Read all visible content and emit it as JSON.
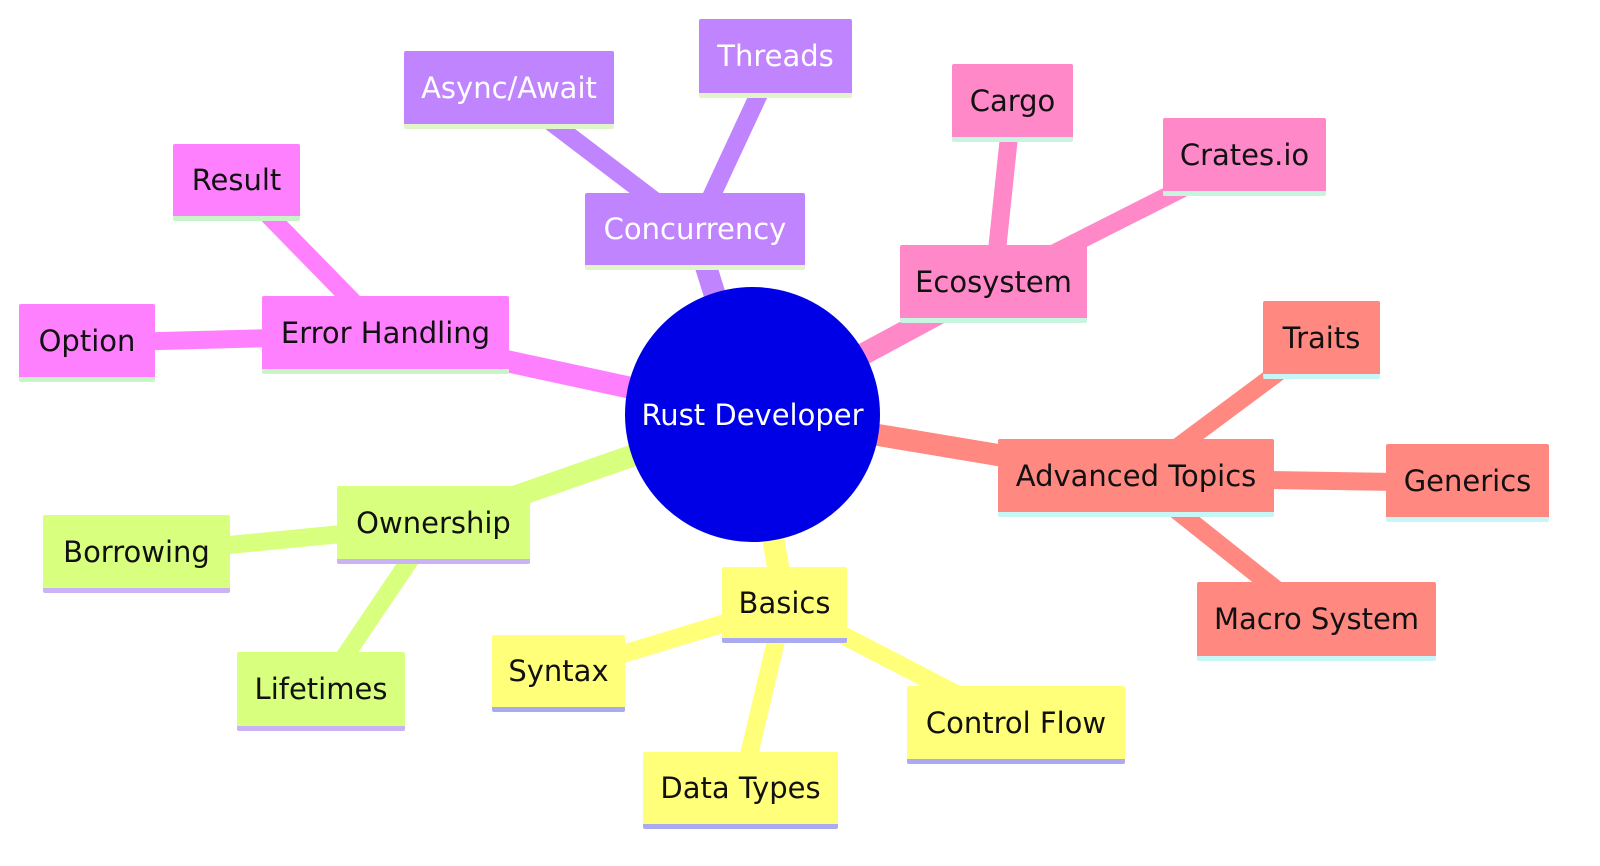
{
  "root": {
    "label": "Rust Developer",
    "color": "#0000e6",
    "text_color": "#ffffff"
  },
  "branches": [
    {
      "key": "basics",
      "label": "Basics",
      "color": "#ffff7a",
      "edge_color": "#ffff7a",
      "underline": "#aaaaf0",
      "text_color": "#111111",
      "children": [
        {
          "key": "syntax",
          "label": "Syntax"
        },
        {
          "key": "data-types",
          "label": "Data Types"
        },
        {
          "key": "control-flow",
          "label": "Control Flow"
        }
      ]
    },
    {
      "key": "ownership",
      "label": "Ownership",
      "color": "#d9ff7f",
      "edge_color": "#d9ff7f",
      "underline": "#c9b3f5",
      "text_color": "#111111",
      "children": [
        {
          "key": "borrowing",
          "label": "Borrowing"
        },
        {
          "key": "lifetimes",
          "label": "Lifetimes"
        }
      ]
    },
    {
      "key": "error-handling",
      "label": "Error Handling",
      "color": "#ff80ff",
      "edge_color": "#ff80ff",
      "underline": "#c8f5c8",
      "text_color": "#111111",
      "children": [
        {
          "key": "result",
          "label": "Result"
        },
        {
          "key": "option",
          "label": "Option"
        }
      ]
    },
    {
      "key": "concurrency",
      "label": "Concurrency",
      "color": "#c084ff",
      "edge_color": "#c084ff",
      "underline": "#e0f5c8",
      "text_color": "#ffffff",
      "children": [
        {
          "key": "async-await",
          "label": "Async/Await"
        },
        {
          "key": "threads",
          "label": "Threads"
        }
      ]
    },
    {
      "key": "ecosystem",
      "label": "Ecosystem",
      "color": "#ff88c8",
      "edge_color": "#ff88c8",
      "underline": "#c8f5e0",
      "text_color": "#111111",
      "children": [
        {
          "key": "cargo",
          "label": "Cargo"
        },
        {
          "key": "crates-io",
          "label": "Crates.io"
        }
      ]
    },
    {
      "key": "advanced-topics",
      "label": "Advanced Topics",
      "color": "#ff8880",
      "edge_color": "#ff8880",
      "underline": "#c8f5f5",
      "text_color": "#111111",
      "children": [
        {
          "key": "traits",
          "label": "Traits"
        },
        {
          "key": "generics",
          "label": "Generics"
        },
        {
          "key": "macro-system",
          "label": "Macro System"
        }
      ]
    }
  ]
}
